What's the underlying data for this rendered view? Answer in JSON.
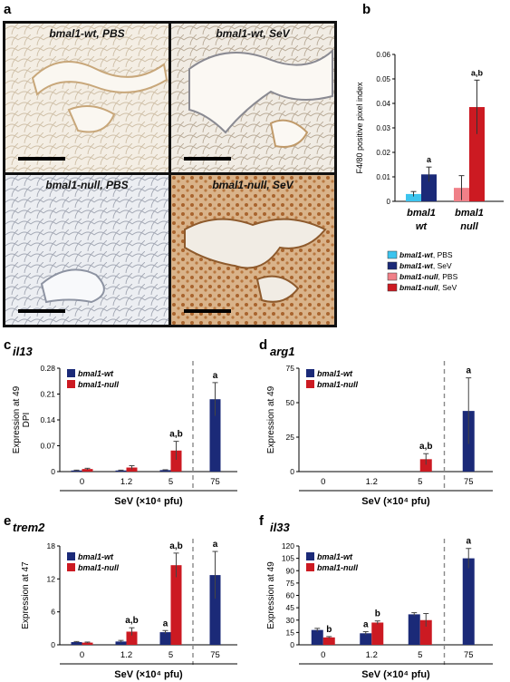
{
  "figure": {
    "panel_letters": {
      "a": "a",
      "b": "b",
      "c": "c",
      "d": "d",
      "e": "e",
      "f": "f"
    },
    "micrographs": [
      {
        "label": "bmal1-wt, PBS",
        "stain": "light"
      },
      {
        "label": "bmal1-wt, SeV",
        "stain": "medium"
      },
      {
        "label": "bmal1-null, PBS",
        "stain": "gray"
      },
      {
        "label": "bmal1-null, SeV",
        "stain": "heavy"
      }
    ]
  },
  "colors": {
    "wt_pbs": "#3cc4ee",
    "wt_sev": "#1b2a78",
    "null_pbs": "#f08088",
    "null_sev": "#cc1a22",
    "wt": "#1b2a78",
    "null": "#cc1a22",
    "divider": "#888888"
  },
  "chart_data": [
    {
      "id": "b",
      "type": "bar",
      "ylabel": "F4/80 positive pixel index",
      "ylim": [
        0,
        0.06
      ],
      "yticks": [
        "0",
        "0.01",
        "0.02",
        "0.03",
        "0.04",
        "0.05",
        "0.06"
      ],
      "groups": [
        [
          "bmal1",
          "wt"
        ],
        [
          "bmal1",
          "null"
        ]
      ],
      "series": [
        {
          "name": "bmal1-wt, PBS",
          "color": "#3cc4ee",
          "group": 0,
          "value": 0.003,
          "err": 0.001,
          "sig": ""
        },
        {
          "name": "bmal1-wt, SeV",
          "color": "#1b2a78",
          "group": 0,
          "value": 0.011,
          "err": 0.003,
          "sig": "a"
        },
        {
          "name": "bmal1-null, PBS",
          "color": "#f08088",
          "group": 1,
          "value": 0.0055,
          "err": 0.005,
          "sig": ""
        },
        {
          "name": "bmal1-null, SeV",
          "color": "#cc1a22",
          "group": 1,
          "value": 0.0385,
          "err": 0.011,
          "sig": "a,b"
        }
      ],
      "legend": [
        {
          "italic": "bmal1-wt",
          "rest": ", PBS",
          "color": "#3cc4ee"
        },
        {
          "italic": "bmal1-wt",
          "rest": ", SeV",
          "color": "#1b2a78"
        },
        {
          "italic": "bmal1-null",
          "rest": ", PBS",
          "color": "#f08088"
        },
        {
          "italic": "bmal1-null",
          "rest": ", SeV",
          "color": "#cc1a22"
        }
      ]
    },
    {
      "id": "c",
      "type": "bar",
      "title": "il13",
      "ylabel": [
        "Expression at 49",
        "DPI"
      ],
      "xlabel": "SeV (×10⁴ pfu)",
      "categories": [
        "0",
        "1.2",
        "5",
        "75"
      ],
      "ylim": [
        0,
        0.28
      ],
      "yticks": [
        "0",
        "0.07",
        "0.14",
        "0.21",
        "0.28"
      ],
      "legend": [
        "bmal1-wt",
        "bmal1-null"
      ],
      "wt": [
        {
          "v": 0.003,
          "e": 0.001,
          "sig": ""
        },
        {
          "v": 0.003,
          "e": 0.001,
          "sig": ""
        },
        {
          "v": 0.004,
          "e": 0.001,
          "sig": ""
        },
        {
          "v": 0.196,
          "e": 0.045,
          "sig": "a"
        }
      ],
      "null": [
        {
          "v": 0.007,
          "e": 0.002,
          "sig": ""
        },
        {
          "v": 0.011,
          "e": 0.005,
          "sig": ""
        },
        {
          "v": 0.057,
          "e": 0.025,
          "sig": "a,b"
        },
        null
      ]
    },
    {
      "id": "d",
      "type": "bar",
      "title": "arg1",
      "ylabel": [
        "Expression at 49"
      ],
      "xlabel": "SeV (×10⁴ pfu)",
      "categories": [
        "0",
        "1.2",
        "5",
        "75"
      ],
      "ylim": [
        0,
        75
      ],
      "yticks": [
        "0",
        "25",
        "50",
        "75"
      ],
      "legend": [
        "bmal1-wt",
        "bmal1-null"
      ],
      "wt": [
        {
          "v": 0,
          "e": 0,
          "sig": ""
        },
        {
          "v": 0,
          "e": 0,
          "sig": ""
        },
        {
          "v": 0,
          "e": 0,
          "sig": ""
        },
        {
          "v": 44,
          "e": 24,
          "sig": "a"
        }
      ],
      "null": [
        {
          "v": 0,
          "e": 0,
          "sig": ""
        },
        {
          "v": 0,
          "e": 0,
          "sig": ""
        },
        {
          "v": 9,
          "e": 4,
          "sig": "a,b"
        },
        null
      ]
    },
    {
      "id": "e",
      "type": "bar",
      "title": "trem2",
      "ylabel": [
        "Expression at 47"
      ],
      "xlabel": "SeV (×10⁴ pfu)",
      "categories": [
        "0",
        "1.2",
        "5",
        "75"
      ],
      "ylim": [
        0,
        18
      ],
      "yticks": [
        "0",
        "6",
        "12",
        "18"
      ],
      "legend": [
        "bmal1-wt",
        "bmal1-null"
      ],
      "wt": [
        {
          "v": 0.5,
          "e": 0.1,
          "sig": ""
        },
        {
          "v": 0.6,
          "e": 0.2,
          "sig": ""
        },
        {
          "v": 2.3,
          "e": 0.3,
          "sig": "a"
        },
        {
          "v": 12.7,
          "e": 4.3,
          "sig": "a"
        }
      ],
      "null": [
        {
          "v": 0.4,
          "e": 0.1,
          "sig": ""
        },
        {
          "v": 2.4,
          "e": 0.7,
          "sig": "a,b"
        },
        {
          "v": 14.5,
          "e": 2.2,
          "sig": "a,b"
        },
        null
      ]
    },
    {
      "id": "f",
      "type": "bar",
      "title": "il33",
      "ylabel": [
        "Expression at 49"
      ],
      "xlabel": "SeV (×10⁴ pfu)",
      "categories": [
        "0",
        "1.2",
        "5",
        "75"
      ],
      "ylim": [
        0,
        120
      ],
      "yticks": [
        "0",
        "15",
        "30",
        "45",
        "60",
        "75",
        "90",
        "105",
        "120"
      ],
      "legend": [
        "bmal1-wt",
        "bmal1-null"
      ],
      "wt": [
        {
          "v": 18,
          "e": 2,
          "sig": ""
        },
        {
          "v": 14,
          "e": 2,
          "sig": "a"
        },
        {
          "v": 37,
          "e": 2,
          "sig": ""
        },
        {
          "v": 105,
          "e": 12,
          "sig": "a"
        }
      ],
      "null": [
        {
          "v": 9,
          "e": 1,
          "sig": "b"
        },
        {
          "v": 27,
          "e": 2,
          "sig": "b"
        },
        {
          "v": 30,
          "e": 8,
          "sig": ""
        },
        null
      ]
    }
  ]
}
